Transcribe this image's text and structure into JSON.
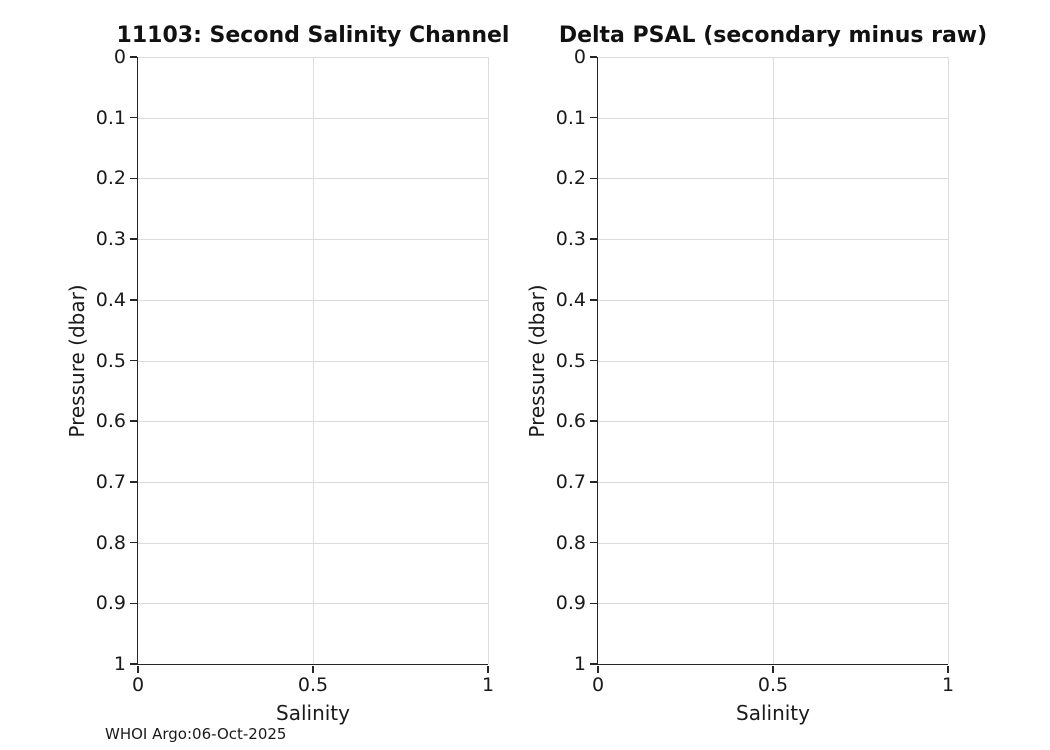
{
  "figure": {
    "background": "#ffffff",
    "footer_credit": "WHOI Argo:06-Oct-2025"
  },
  "colors": {
    "text": "#111111",
    "axis_spine": "#262626",
    "grid": "#dcdcdc",
    "background": "#ffffff"
  },
  "chart_data": [
    {
      "type": "scatter",
      "title": "11103: Second Salinity Channel",
      "xlabel": "Salinity",
      "ylabel": "Pressure (dbar)",
      "xlim": [
        0,
        1
      ],
      "ylim": [
        0,
        1
      ],
      "y_axis_direction": "reversed (0 at top, 1 at bottom)",
      "xticks": [
        "0",
        "0.5",
        "1"
      ],
      "yticks": [
        "0",
        "0.1",
        "0.2",
        "0.3",
        "0.4",
        "0.5",
        "0.6",
        "0.7",
        "0.8",
        "0.9",
        "1"
      ],
      "grid": true,
      "legend": null,
      "series": []
    },
    {
      "type": "scatter",
      "title": "Delta PSAL (secondary minus raw)",
      "xlabel": "Salinity",
      "ylabel": "Pressure (dbar)",
      "xlim": [
        0,
        1
      ],
      "ylim": [
        0,
        1
      ],
      "y_axis_direction": "reversed (0 at top, 1 at bottom)",
      "xticks": [
        "0",
        "0.5",
        "1"
      ],
      "yticks": [
        "0",
        "0.1",
        "0.2",
        "0.3",
        "0.4",
        "0.5",
        "0.6",
        "0.7",
        "0.8",
        "0.9",
        "1"
      ],
      "grid": true,
      "legend": null,
      "series": []
    }
  ]
}
